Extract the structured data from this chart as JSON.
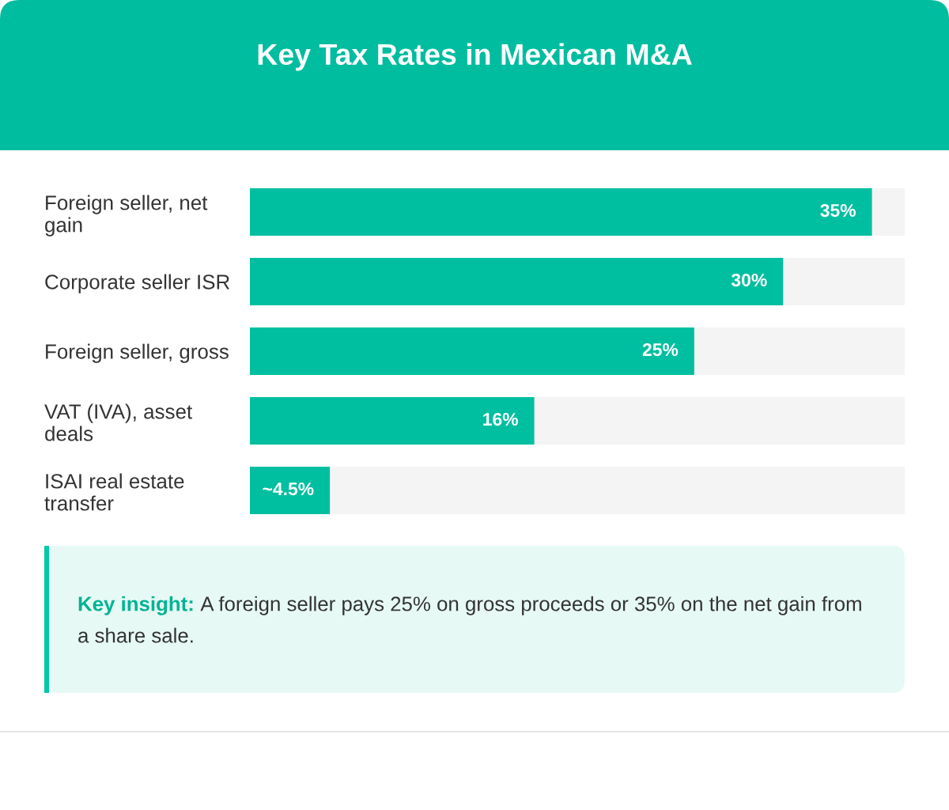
{
  "chart_data": {
    "type": "bar",
    "orientation": "horizontal",
    "title": "Key Tax Rates in Mexican M&A",
    "categories": [
      "Foreign seller, net gain",
      "Corporate seller ISR",
      "Foreign seller, gross",
      "VAT (IVA), asset deals",
      "ISAI real estate transfer"
    ],
    "values": [
      35,
      30,
      25,
      16,
      4.5
    ],
    "color": "#00bfa0",
    "value_labels": [
      "35%",
      "30%",
      "25%",
      "16%",
      "~4.5%"
    ],
    "tick_labels": "y",
    "annotations": [
      "Key insight: A foreign seller pays 25% on gross proceeds or 35% on the net gain from a share sale."
    ]
  }
}
